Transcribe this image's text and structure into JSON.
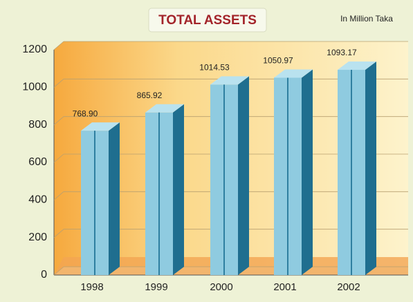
{
  "chart_data": {
    "type": "bar3d",
    "title": "TOTAL ASSETS",
    "subtitle": "In Million Taka",
    "categories": [
      "1998",
      "1999",
      "2000",
      "2001",
      "2002"
    ],
    "values": [
      768.9,
      865.92,
      1014.53,
      1050.97,
      1093.17
    ],
    "value_labels": [
      "768.90",
      "865.92",
      "1014.53",
      "1050.97",
      "1093.17"
    ],
    "color": "#8fcbe0",
    "ylim": [
      0,
      1200
    ],
    "yticks": [
      0,
      200,
      400,
      600,
      800,
      1000,
      1200
    ],
    "grid": true
  }
}
